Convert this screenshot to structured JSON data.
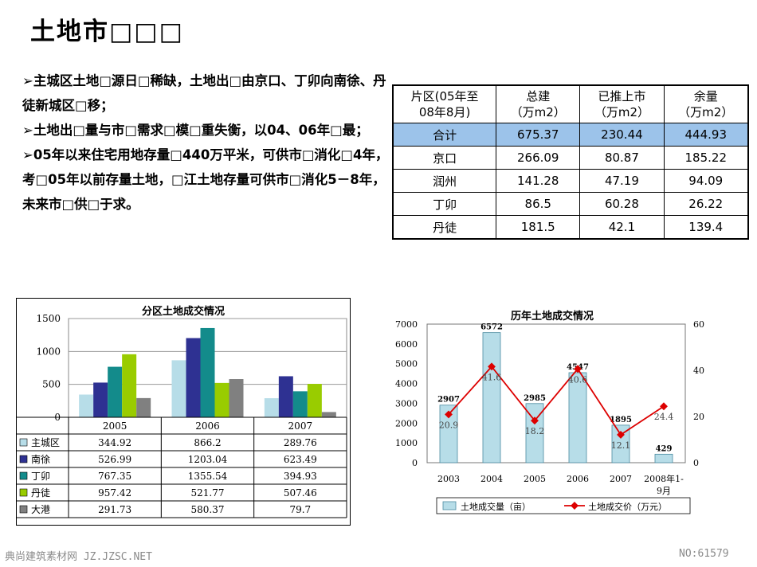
{
  "page": {
    "title": "土地市□□□",
    "bullets": [
      "➢主城区土地□源日□稀缺，土地出□由京口、丁卯向南徐、丹徒新城区□移；",
      "➢土地出□量与市□需求□模□重失衡，以04、06年□最；",
      "➢05年以来住宅用地存量□440万平米，可供市□消化□4年，考□05年以前存量土地，□江土地存量可供市□消化5－8年，未来市□供□于求。"
    ],
    "footer_left": "典尚建筑素材网 JZ.JZSC.NET",
    "footer_right": "NO:61579"
  },
  "summary_table": {
    "headers": [
      "片区(05年至08年8月)",
      "总建（万m2）",
      "已推上市（万m2）",
      "余量（万m2）"
    ],
    "header_lines": [
      [
        "片区(05年至",
        "08年8月)"
      ],
      [
        "总建",
        "（万m2）"
      ],
      [
        "已推上市",
        "（万m2）"
      ],
      [
        "余量",
        "（万m2）"
      ]
    ],
    "rows": [
      [
        "合计",
        "675.37",
        "230.44",
        "444.93"
      ],
      [
        "京口",
        "266.09",
        "80.87",
        "185.22"
      ],
      [
        "润州",
        "141.28",
        "47.19",
        "94.09"
      ],
      [
        "丁卯",
        "86.5",
        "60.28",
        "26.22"
      ],
      [
        "丹徒",
        "181.5",
        "42.1",
        "139.4"
      ]
    ],
    "highlight_color": "#9cc3ea"
  },
  "chart_data": [
    {
      "type": "bar",
      "title": "分区土地成交情况",
      "categories": [
        "2005",
        "2006",
        "2007"
      ],
      "ylim": [
        0,
        1500
      ],
      "yticks": [
        "0",
        "500",
        "1000",
        "1500"
      ],
      "grid": true,
      "legend_placement": "data-table-below",
      "series": [
        {
          "name": "主城区",
          "color": "#b7dde8",
          "values": [
            344.92,
            866.2,
            289.76
          ],
          "labels": [
            "344.92",
            "866.2",
            "289.76"
          ]
        },
        {
          "name": "南徐",
          "color": "#2e3192",
          "values": [
            526.99,
            1203.04,
            623.49
          ],
          "labels": [
            "526.99",
            "1203.04",
            "623.49"
          ]
        },
        {
          "name": "丁卯",
          "color": "#138b8b",
          "values": [
            767.35,
            1355.54,
            394.93
          ],
          "labels": [
            "767.35",
            "1355.54",
            "394.93"
          ]
        },
        {
          "name": "丹徒",
          "color": "#99cc00",
          "values": [
            957.42,
            521.77,
            507.46
          ],
          "labels": [
            "957.42",
            "521.77",
            "507.46"
          ]
        },
        {
          "name": "大港",
          "color": "#808080",
          "values": [
            291.73,
            580.37,
            79.7
          ],
          "labels": [
            "291.73",
            "580.37",
            "79.7"
          ]
        }
      ]
    },
    {
      "type": "bar",
      "title": "历年土地成交情况",
      "categories": [
        "2003",
        "2004",
        "2005",
        "2006",
        "2007",
        "2008年1-9月"
      ],
      "category_lines": [
        [
          "2003"
        ],
        [
          "2004"
        ],
        [
          "2005"
        ],
        [
          "2006"
        ],
        [
          "2007"
        ],
        [
          "2008年1-",
          "9月"
        ]
      ],
      "ylim": [
        0,
        7000
      ],
      "yticks": [
        "0",
        "1000",
        "2000",
        "3000",
        "4000",
        "5000",
        "6000",
        "7000"
      ],
      "y2lim": [
        0,
        60
      ],
      "y2ticks": [
        "0",
        "20",
        "40",
        "60"
      ],
      "legend_placement": "bottom",
      "series": [
        {
          "name": "土地成交量（亩）",
          "type": "bar",
          "axis": "left",
          "color": "#b7dde8",
          "values": [
            2907,
            6572,
            2985,
            4547,
            1895,
            429
          ],
          "labels": [
            "2907",
            "6572",
            "2985",
            "4547",
            "1895",
            "429"
          ]
        },
        {
          "name": "土地成交价（万元）",
          "type": "line",
          "axis": "right",
          "color": "#dd0000",
          "values": [
            20.9,
            41.6,
            18.2,
            40.6,
            12.1,
            24.4
          ],
          "labels": [
            "20.9",
            "41.6",
            "18.2",
            "40.6",
            "12.1",
            "24.4"
          ]
        }
      ]
    }
  ]
}
